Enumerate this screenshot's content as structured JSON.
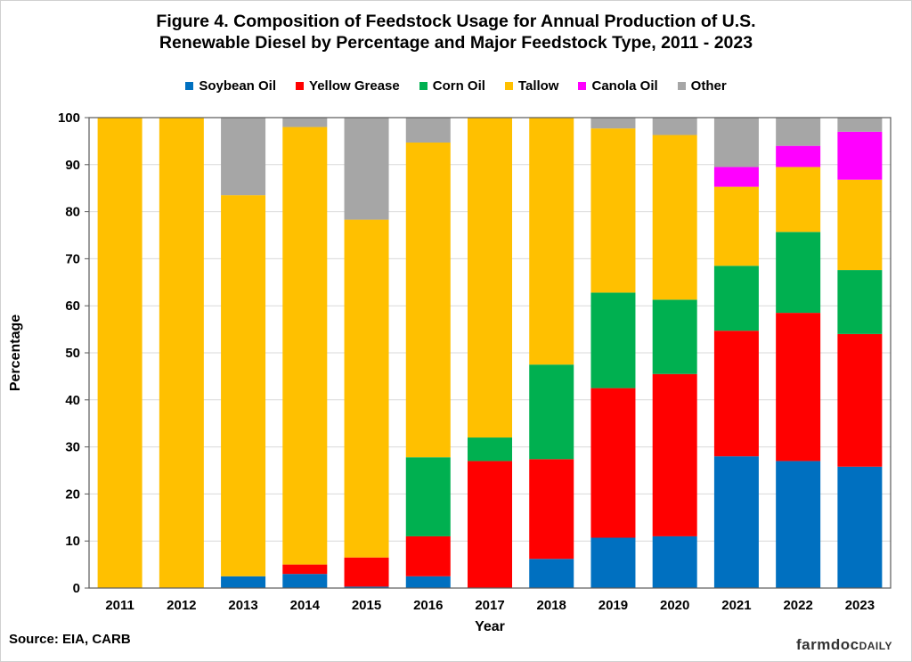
{
  "chart_data": {
    "type": "bar",
    "stacked": true,
    "title_line1": "Figure 4. Composition of Feedstock Usage for Annual Production of U.S.",
    "title_line2": "Renewable Diesel by Percentage and Major Feedstock Type, 2011 - 2023",
    "xlabel": "Year",
    "ylabel": "Percentage",
    "ylim": [
      0,
      100
    ],
    "yticks": [
      0,
      10,
      20,
      30,
      40,
      50,
      60,
      70,
      80,
      90,
      100
    ],
    "grid": true,
    "legend_position": "top",
    "categories": [
      "2011",
      "2012",
      "2013",
      "2014",
      "2015",
      "2016",
      "2017",
      "2018",
      "2019",
      "2020",
      "2021",
      "2022",
      "2023"
    ],
    "series": [
      {
        "name": "Soybean Oil",
        "color": "#0070C0",
        "values": [
          0,
          0,
          2.5,
          3,
          0.3,
          2.5,
          0,
          6.2,
          10.7,
          11,
          28,
          27,
          25.8
        ]
      },
      {
        "name": "Yellow Grease",
        "color": "#FF0000",
        "values": [
          0,
          0,
          0,
          2,
          6.2,
          8.5,
          27,
          21.2,
          31.8,
          34.5,
          26.7,
          31.5,
          28.2
        ]
      },
      {
        "name": "Corn Oil",
        "color": "#00B050",
        "values": [
          0,
          0,
          0,
          0,
          0,
          16.8,
          5,
          20.1,
          20.3,
          15.8,
          13.8,
          17.2,
          13.6
        ]
      },
      {
        "name": "Tallow",
        "color": "#FFC000",
        "values": [
          100,
          100,
          81,
          93,
          71.8,
          66.9,
          68,
          52.5,
          34.9,
          35,
          16.8,
          13.8,
          19.2
        ]
      },
      {
        "name": "Canola Oil",
        "color": "#FF00FF",
        "values": [
          0,
          0,
          0,
          0,
          0,
          0,
          0,
          0,
          0,
          0,
          4.2,
          4.5,
          10.2
        ]
      },
      {
        "name": "Other",
        "color": "#A6A6A6",
        "values": [
          0,
          0,
          16.5,
          2,
          21.7,
          5.3,
          0,
          0,
          2.3,
          3.7,
          10.5,
          6,
          3
        ]
      }
    ]
  },
  "source": "Source: EIA, CARB",
  "logo": {
    "part1": "farmdoc",
    "part2": "DAILY"
  }
}
